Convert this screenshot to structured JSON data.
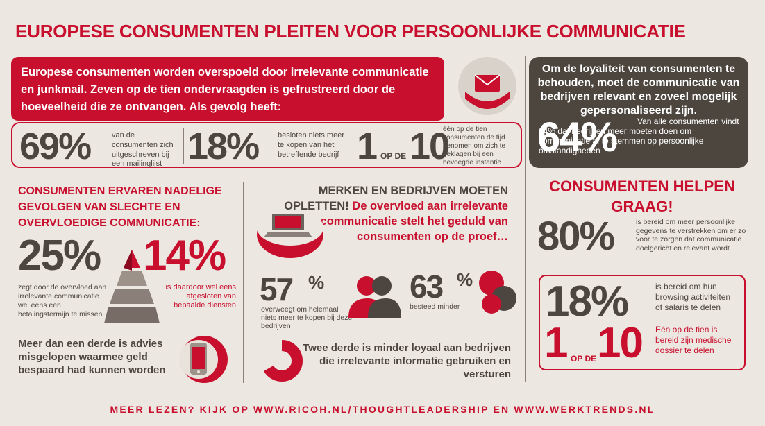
{
  "title": "EUROPESE CONSUMENTEN PLEITEN VOOR PERSOONLIJKE COMMUNICATIE",
  "intro": "Europese consumenten worden overspoeld door irrelevante communicatie en junkmail. Zeven op de tien ondervraagden is gefrustreerd door de hoeveelheid die ze ontvangen. Als gevolg heeft:",
  "stats": [
    {
      "value": "69%",
      "desc": "van de consumenten zich uitgeschreven bij een mailinglijst"
    },
    {
      "value": "18%",
      "desc": "besloten niets meer te kopen van het betreffende bedrijf"
    },
    {
      "value_a": "1",
      "value_op": "OP DE",
      "value_b": "10",
      "desc": "één op de tien consumenten de tijd genomen om zich te beklagen bij een bevoegde instantie"
    }
  ],
  "loyalty": {
    "text": "Om de loyaliteit van consumenten te behouden, moet de communicatie van bedrijven relevant en zoveel mogelijk gepersonaliseerd zijn.",
    "value": "64%",
    "desc": "Van alle consumenten vindt 64% dat bedrijven meer moeten doen om communicatie af te stemmen op persoonlijke omstandigheden"
  },
  "left": {
    "heading": "CONSUMENTEN ERVAREN NADELIGE GEVOLGEN VAN SLECHTE EN OVERVLOEDIGE COMMUNICATIE:",
    "stat_a": {
      "value": "25%",
      "desc": "zegt door de overvloed aan irrelevante communicatie wel eens een betalingstermijn te missen"
    },
    "stat_b": {
      "value": "14%",
      "desc": "is daardoor wel eens afgesloten van bepaalde diensten"
    },
    "advice": "Meer dan een derde is advies misgelopen waarmee geld bespaard had kunnen worden"
  },
  "middle": {
    "heading_dark": "MERKEN EN BEDRIJVEN MOETEN OPLETTEN!",
    "heading_red": "De overvloed aan irrelevante communicatie stelt het geduld van consumenten op de proef…",
    "stat_a": {
      "value": "57",
      "pct": "%",
      "desc": "overweegt om helemaal niets meer te kopen bij deze bedrijven"
    },
    "stat_b": {
      "value": "63",
      "pct": "%",
      "desc": "besteed minder"
    },
    "loyal": "Twee derde is minder loyaal aan bedrijven die irrelevante informatie gebruiken en versturen"
  },
  "right": {
    "heading": "CONSUMENTEN HELPEN GRAAG!",
    "stat_a": {
      "value": "80%",
      "desc": "is bereid om meer persoonlijke gegevens te verstrekken om er zo voor te zorgen dat communicatie doelgericht en relevant wordt"
    },
    "stat_b": {
      "value": "18%",
      "desc": "is bereid om hun browsing activiteiten of salaris te delen"
    },
    "stat_c": {
      "value_a": "1",
      "value_op": "OP DE",
      "value_b": "10",
      "desc": "Eén op de tien is bereid zijn medische dossier te delen"
    }
  },
  "footer": "MEER LEZEN? KIJK OP WWW.RICOH.NL/THOUGHTLEADERSHIP EN WWW.WERKTRENDS.NL",
  "colors": {
    "accent": "#c8102e",
    "dark": "#4d4640",
    "background": "#ece7e1"
  },
  "icons": [
    "envelope-icon",
    "pyramid-icon",
    "smartphone-icon",
    "laptop-icon",
    "people-icon",
    "circles-icon",
    "ring-chart-icon"
  ]
}
